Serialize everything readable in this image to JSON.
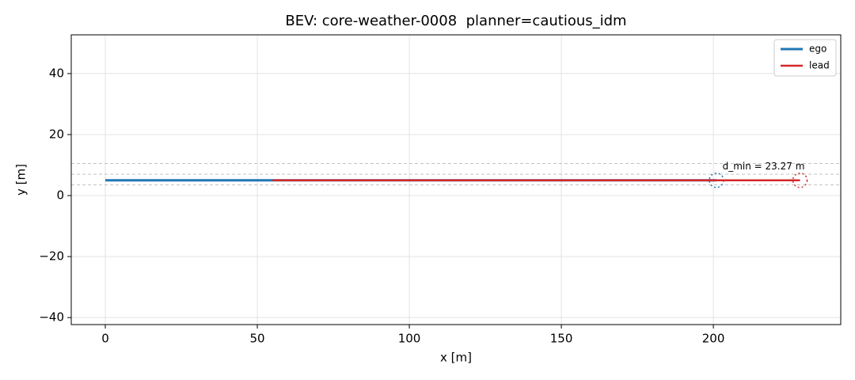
{
  "chart_data": {
    "type": "line",
    "title": "BEV: core-weather-0008  planner=cautious_idm",
    "x_label": "x [m]",
    "y_label": "y [m]",
    "series": [
      {
        "name": "ego",
        "color": "#1f77b4",
        "x": [
          0,
          201
        ],
        "values": [
          5,
          5
        ]
      },
      {
        "name": "lead",
        "color": "#d62728",
        "x": [
          55,
          228.5
        ],
        "values": [
          5,
          5
        ]
      }
    ],
    "hlines": [
      3.5,
      7,
      10.5
    ],
    "annotation": {
      "text": "d_min = 23.27 m",
      "x": 203,
      "y": 9.5
    },
    "xlim": [
      -11.2,
      241.9
    ],
    "ylim": [
      -42.3,
      52.7
    ],
    "xticks": [
      0,
      50,
      100,
      150,
      200
    ],
    "yticks": [
      {
        "value": -40,
        "label": "−40"
      },
      {
        "value": -20,
        "label": "−20"
      },
      0,
      20,
      40
    ],
    "grid": true,
    "legend": "upper right"
  }
}
